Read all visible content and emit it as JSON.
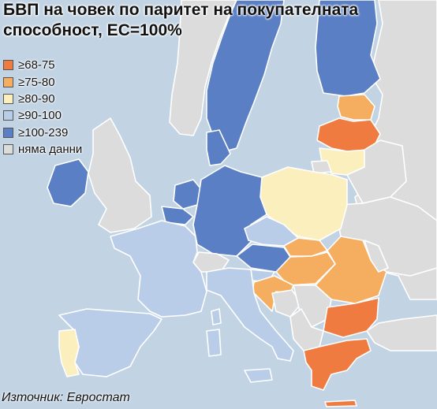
{
  "title_line1": "БВП на човек по паритет на покупателната",
  "title_line2": "способност, ЕС=100%",
  "legend": [
    {
      "label": "≥68-75",
      "color": "#f07b40"
    },
    {
      "label": "≥75-80",
      "color": "#f5ad60"
    },
    {
      "label": "≥80-90",
      "color": "#fbefbd"
    },
    {
      "label": "≥90-100",
      "color": "#b9cde9"
    },
    {
      "label": "≥100-239",
      "color": "#5a7fc4"
    },
    {
      "label": "няма данни",
      "color": "#dcdcdc"
    }
  ],
  "source": "Източник: Евростат",
  "colors": {
    "sea": "#c2d4e4",
    "border": "#ffffff"
  }
}
